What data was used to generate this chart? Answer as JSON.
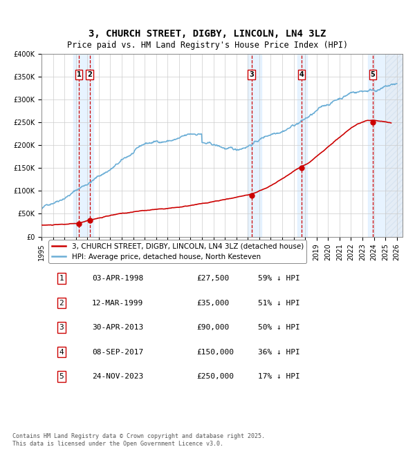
{
  "title": "3, CHURCH STREET, DIGBY, LINCOLN, LN4 3LZ",
  "subtitle": "Price paid vs. HM Land Registry's House Price Index (HPI)",
  "footer": "Contains HM Land Registry data © Crown copyright and database right 2025.\nThis data is licensed under the Open Government Licence v3.0.",
  "legend_line1": "3, CHURCH STREET, DIGBY, LINCOLN, LN4 3LZ (detached house)",
  "legend_line2": "HPI: Average price, detached house, North Kesteven",
  "purchases": [
    {
      "num": 1,
      "date": "03-APR-1998",
      "price": 27500,
      "pct": "59%",
      "year_x": 1998.25
    },
    {
      "num": 2,
      "date": "12-MAR-1999",
      "price": 35000,
      "pct": "51%",
      "year_x": 1999.2
    },
    {
      "num": 3,
      "date": "30-APR-2013",
      "price": 90000,
      "pct": "50%",
      "year_x": 2013.33
    },
    {
      "num": 4,
      "date": "08-SEP-2017",
      "price": 150000,
      "pct": "36%",
      "year_x": 2017.69
    },
    {
      "num": 5,
      "date": "24-NOV-2023",
      "price": 250000,
      "pct": "17%",
      "year_x": 2023.9
    }
  ],
  "hpi_color": "#6baed6",
  "price_color": "#cc0000",
  "dot_color": "#cc0000",
  "vline_color": "#cc0000",
  "box_color": "#cc0000",
  "background_color": "#ffffff",
  "grid_color": "#cccccc",
  "highlight_color": "#ddeeff",
  "hatch_color": "#ccddee",
  "ylim": [
    0,
    400000
  ],
  "yticks": [
    0,
    50000,
    100000,
    150000,
    200000,
    250000,
    300000,
    350000,
    400000
  ],
  "xlim_start": 1995.0,
  "xlim_end": 2026.5,
  "xticks": [
    1995,
    1996,
    1997,
    1998,
    1999,
    2000,
    2001,
    2002,
    2003,
    2004,
    2005,
    2006,
    2007,
    2008,
    2009,
    2010,
    2011,
    2012,
    2013,
    2014,
    2015,
    2016,
    2017,
    2018,
    2019,
    2020,
    2021,
    2022,
    2023,
    2024,
    2025,
    2026
  ]
}
